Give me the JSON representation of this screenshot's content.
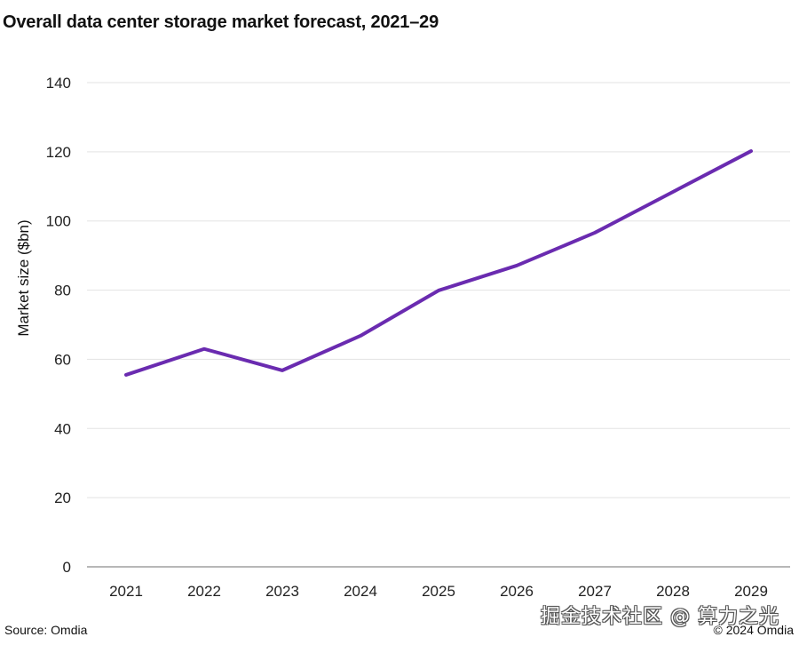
{
  "chart_data": {
    "type": "line",
    "title": "Overall data center storage market forecast, 2021–29",
    "xlabel": "",
    "ylabel": "Market size ($bn)",
    "categories": [
      "2021",
      "2022",
      "2023",
      "2024",
      "2025",
      "2026",
      "2027",
      "2028",
      "2029"
    ],
    "series": [
      {
        "name": "Market size",
        "values": [
          55.5,
          63,
          56.8,
          66.8,
          79.9,
          87.1,
          96.6,
          108.4,
          120.2
        ],
        "color": "#6a2bb0"
      }
    ],
    "ylim": [
      0,
      140
    ],
    "yticks": [
      0,
      20,
      40,
      60,
      80,
      100,
      120,
      140
    ],
    "grid": true,
    "legend": "none"
  },
  "footer": {
    "source": "Source: Omdia",
    "copyright": "© 2024 Omdia",
    "watermark": "掘金技术社区 @ 算力之光"
  },
  "colors": {
    "line": "#6a2bb0",
    "grid": "#e3e3e3",
    "axis": "#8c8c8c"
  }
}
